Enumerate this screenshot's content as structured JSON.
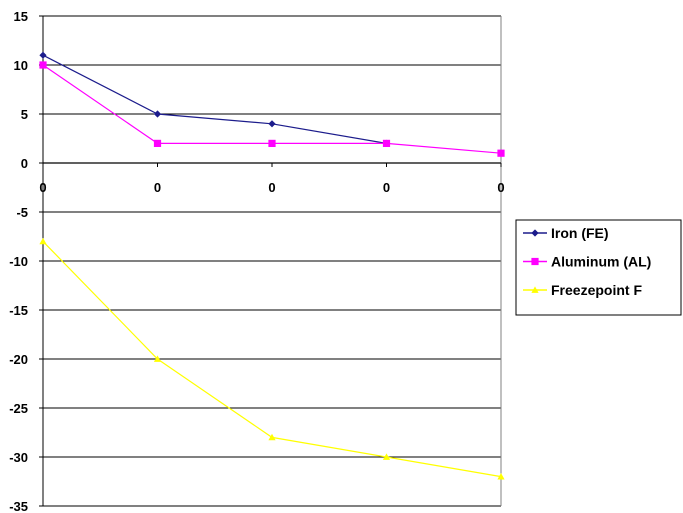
{
  "chart_data": {
    "type": "line",
    "title": "",
    "xlabel": "",
    "ylabel": "",
    "categories": [
      "0",
      "0",
      "0",
      "0",
      "0"
    ],
    "ylim": [
      -35,
      15
    ],
    "ytick_step": 5,
    "grid": true,
    "legend_position": "right",
    "series": [
      {
        "name": "Iron (FE)",
        "values": [
          11,
          5,
          4,
          2,
          null
        ],
        "color": "#1c1c8c",
        "marker": "diamond"
      },
      {
        "name": "Aluminum (AL)",
        "values": [
          10,
          2,
          2,
          2,
          1
        ],
        "color": "#ff00ff",
        "marker": "square"
      },
      {
        "name": "Freezepoint F",
        "values": [
          -8,
          -20,
          -28,
          -30,
          -32
        ],
        "color": "#ffff00",
        "marker": "triangle"
      }
    ]
  }
}
